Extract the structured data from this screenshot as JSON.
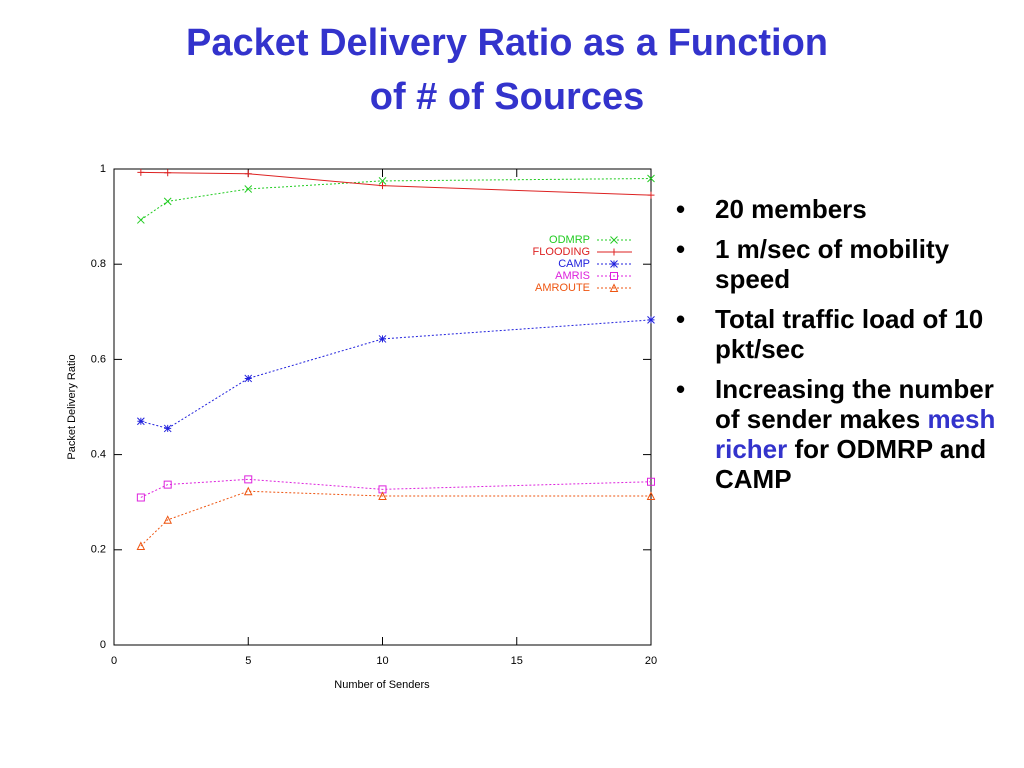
{
  "title_lines": [
    "Packet Delivery Ratio as a Function",
    "of # of Sources"
  ],
  "bullets": [
    {
      "parts": [
        "20 members"
      ]
    },
    {
      "parts": [
        "1 m/sec of mobility speed"
      ]
    },
    {
      "parts": [
        "Total traffic load of 10 pkt/sec"
      ]
    },
    {
      "parts": [
        "Increasing the number of sender makes ",
        "mesh richer",
        " for ODMRP and CAMP"
      ],
      "highlight": 1,
      "highlight_color": "#3333cc"
    }
  ],
  "chart_data": {
    "type": "line",
    "x_label": "Number of Senders",
    "y_label": "Packet Delivery Ratio",
    "x": [
      1,
      2,
      5,
      10,
      20
    ],
    "xlim": [
      0,
      20
    ],
    "xticks": [
      0,
      5,
      10,
      15,
      20
    ],
    "ylim": [
      0,
      1
    ],
    "yticks": [
      0,
      0.2,
      0.4,
      0.6,
      0.8,
      1
    ],
    "series": [
      {
        "name": "ODMRP",
        "color": "#22cc22",
        "marker": "x",
        "dashed": true,
        "values": [
          0.893,
          0.932,
          0.958,
          0.975,
          0.98
        ]
      },
      {
        "name": "FLOODING",
        "color": "#dd2222",
        "marker": "plus",
        "dashed": false,
        "values": [
          0.993,
          0.992,
          0.99,
          0.965,
          0.945
        ]
      },
      {
        "name": "CAMP",
        "color": "#2222dd",
        "marker": "star",
        "dashed": true,
        "values": [
          0.47,
          0.455,
          0.56,
          0.643,
          0.683
        ]
      },
      {
        "name": "AMRIS",
        "color": "#dd22dd",
        "marker": "square",
        "dashed": true,
        "values": [
          0.31,
          0.337,
          0.348,
          0.327,
          0.343
        ]
      },
      {
        "name": "AMROUTE",
        "color": "#ee5511",
        "marker": "triangle",
        "dashed": true,
        "values": [
          0.208,
          0.263,
          0.323,
          0.313,
          0.313
        ]
      }
    ]
  }
}
